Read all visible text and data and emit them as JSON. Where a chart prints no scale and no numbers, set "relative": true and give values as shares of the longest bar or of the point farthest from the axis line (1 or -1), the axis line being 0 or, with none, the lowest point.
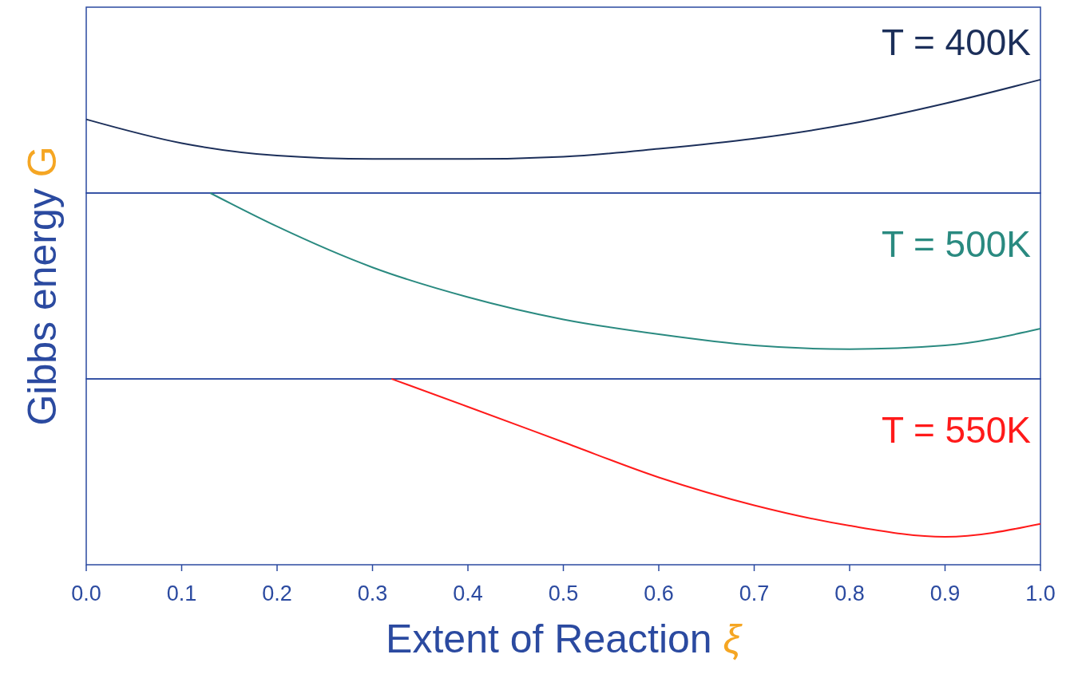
{
  "chart_data": [
    {
      "type": "line",
      "relative": true,
      "xlim": [
        0,
        1
      ],
      "tick_labels": false,
      "series": [
        {
          "name": "T = 400K",
          "color": "#1c2f5a",
          "x": [
            0,
            0.1,
            0.2,
            0.3,
            0.4,
            0.5,
            0.6,
            0.7,
            0.8,
            0.9,
            1.0
          ],
          "values": [
            0.65,
            0.44,
            0.33,
            0.3,
            0.3,
            0.32,
            0.39,
            0.48,
            0.61,
            0.79,
            1
          ]
        }
      ]
    },
    {
      "type": "line",
      "relative": true,
      "xlim": [
        0,
        1
      ],
      "tick_labels": false,
      "ylabel": "Gibbs energy G",
      "series": [
        {
          "name": "T = 500K",
          "color": "#2a8a80",
          "x": [
            0.13,
            0.2,
            0.3,
            0.4,
            0.5,
            0.6,
            0.7,
            0.8,
            0.9,
            1.0
          ],
          "values": [
            1,
            0.82,
            0.6,
            0.44,
            0.32,
            0.24,
            0.18,
            0.16,
            0.18,
            0.27
          ]
        }
      ]
    },
    {
      "type": "line",
      "relative": true,
      "xlim": [
        0,
        1
      ],
      "tick_labels": "x",
      "xlabel": "Extent of Reaction ξ",
      "xticks": [
        {
          "value": 0,
          "label": "0.0"
        },
        {
          "value": 0.1,
          "label": "0.1"
        },
        {
          "value": 0.2,
          "label": "0.2"
        },
        {
          "value": 0.3,
          "label": "0.3"
        },
        {
          "value": 0.4,
          "label": "0.4"
        },
        {
          "value": 0.5,
          "label": "0.5"
        },
        {
          "value": 0.6,
          "label": "0.6"
        },
        {
          "value": 0.7,
          "label": "0.7"
        },
        {
          "value": 0.8,
          "label": "0.8"
        },
        {
          "value": 0.9,
          "label": "0.9"
        },
        {
          "value": 1,
          "label": "1.0"
        }
      ],
      "series": [
        {
          "name": "T = 550K",
          "color": "#ff1a1a",
          "x": [
            0.32,
            0.4,
            0.5,
            0.6,
            0.7,
            0.8,
            0.9,
            1.0
          ],
          "values": [
            1,
            0.85,
            0.66,
            0.47,
            0.32,
            0.21,
            0.15,
            0.22
          ]
        }
      ]
    }
  ]
}
